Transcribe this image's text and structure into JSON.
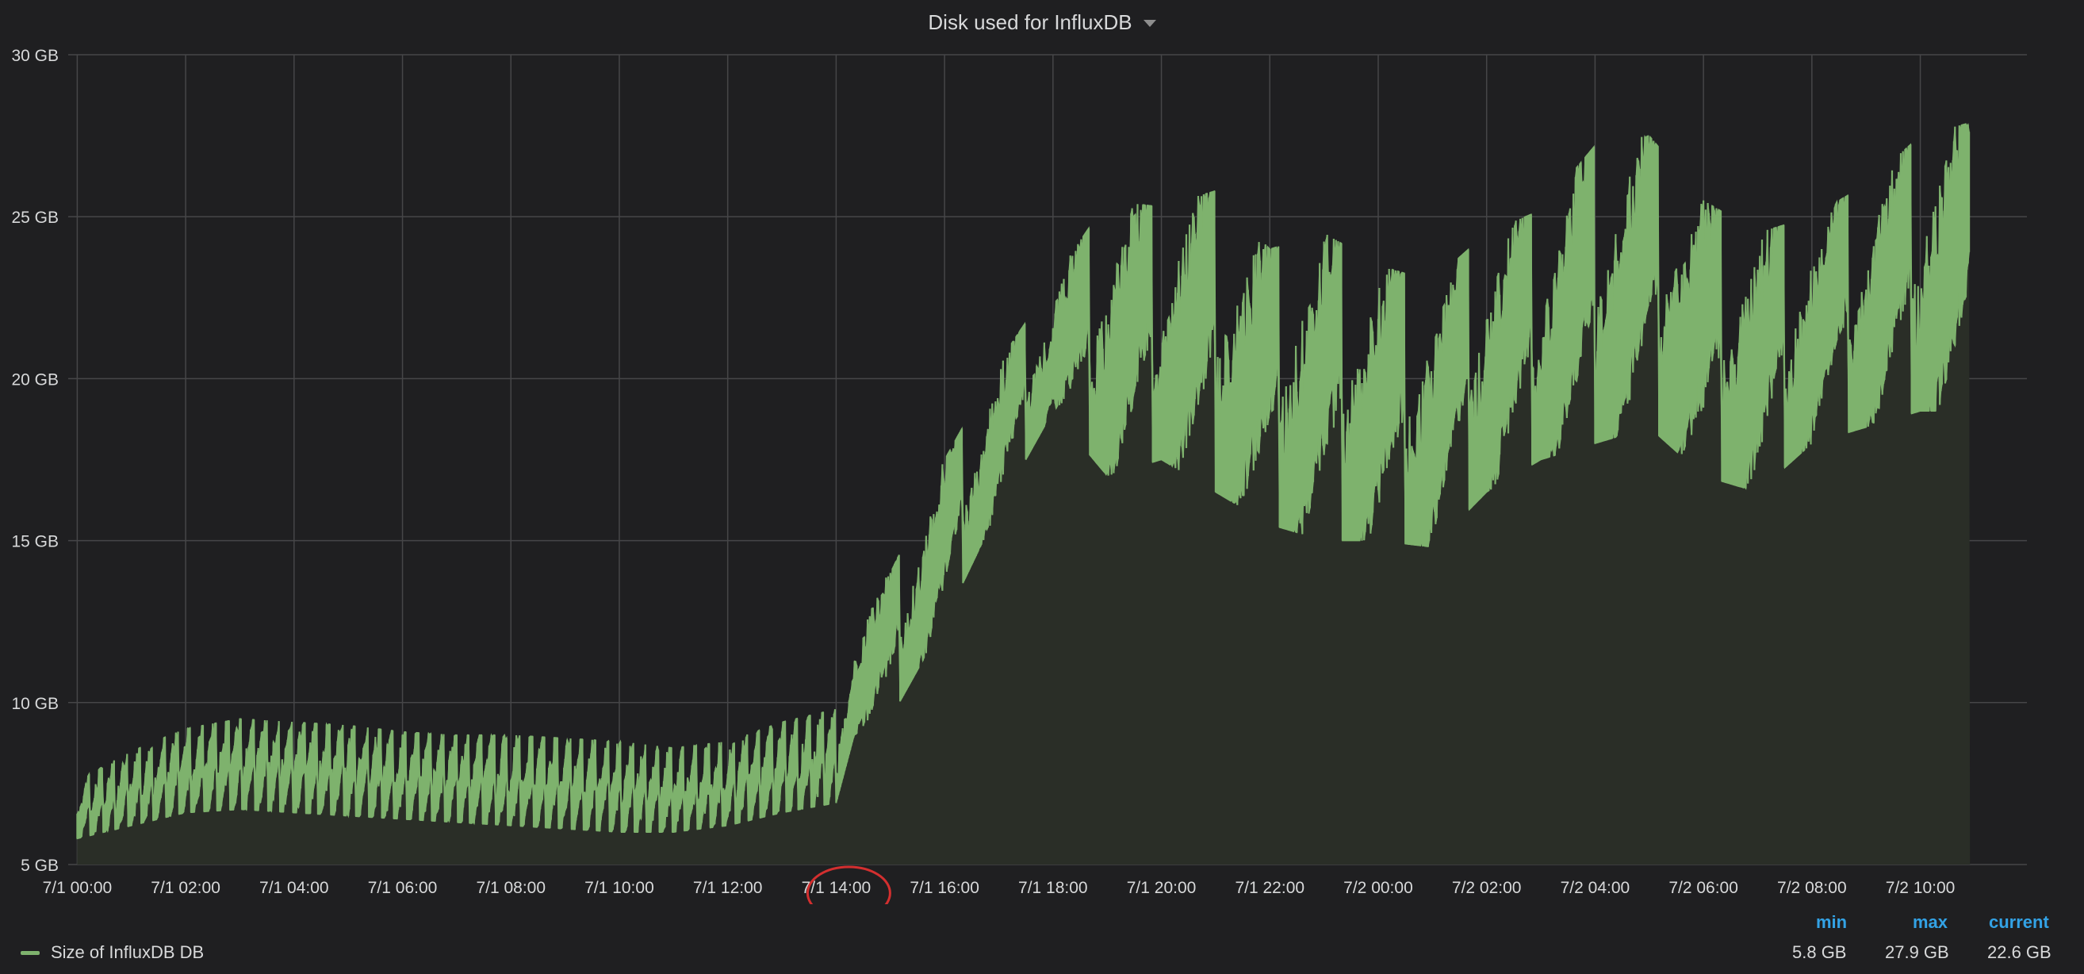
{
  "panel": {
    "title": "Disk used for InfluxDB"
  },
  "colors": {
    "background": "#1f1f21",
    "grid": "#464648",
    "series": "#7eb26d",
    "fill": "#2a2e27",
    "legend_header": "#33a2e5",
    "annotation": "#d32f2f"
  },
  "legend": {
    "headers": {
      "min": "min",
      "max": "max",
      "current": "current"
    },
    "series_label": "Size of InfluxDB DB",
    "min": "5.8 GB",
    "max": "27.9 GB",
    "current": "22.6 GB"
  },
  "chart_data": {
    "type": "area",
    "title": "Disk used for InfluxDB",
    "xlabel": "",
    "ylabel": "",
    "y_unit": "GB",
    "ylim": [
      5,
      30
    ],
    "y_ticks": [
      5,
      10,
      15,
      20,
      25,
      30
    ],
    "y_tick_labels": [
      "5 GB",
      "10 GB",
      "15 GB",
      "20 GB",
      "25 GB",
      "30 GB"
    ],
    "xlim": [
      "7/1 00:00",
      "7/2 11:00"
    ],
    "x_ticks": [
      "7/1 00:00",
      "7/1 02:00",
      "7/1 04:00",
      "7/1 06:00",
      "7/1 08:00",
      "7/1 10:00",
      "7/1 12:00",
      "7/1 14:00",
      "7/1 16:00",
      "7/1 18:00",
      "7/1 20:00",
      "7/1 22:00",
      "7/2 00:00",
      "7/2 02:00",
      "7/2 04:00",
      "7/2 06:00",
      "7/2 08:00",
      "7/2 10:00"
    ],
    "grid": true,
    "legend_position": "bottom",
    "annotation": "red circle around 7/1 14:00 tick label",
    "series": [
      {
        "name": "Size of InfluxDB DB",
        "x": [
          "7/1 00:00",
          "7/1 01:00",
          "7/1 02:00",
          "7/1 03:00",
          "7/1 04:00",
          "7/1 05:00",
          "7/1 06:00",
          "7/1 07:00",
          "7/1 08:00",
          "7/1 09:00",
          "7/1 10:00",
          "7/1 11:00",
          "7/1 12:00",
          "7/1 13:00",
          "7/1 14:00",
          "7/1 14:20",
          "7/1 15:00",
          "7/1 16:00",
          "7/1 17:00",
          "7/1 18:00",
          "7/1 19:00",
          "7/1 20:00",
          "7/1 21:00",
          "7/1 22:00",
          "7/1 23:00",
          "7/2 00:00",
          "7/2 01:00",
          "7/2 02:00",
          "7/2 03:00",
          "7/2 04:00",
          "7/2 05:00",
          "7/2 06:00",
          "7/2 07:00",
          "7/2 08:00",
          "7/2 09:00",
          "7/2 10:00",
          "7/2 10:55"
        ],
        "max": [
          7.6,
          8.5,
          9.2,
          9.5,
          9.4,
          9.3,
          9.1,
          9.0,
          9.0,
          8.9,
          8.8,
          8.6,
          8.8,
          9.4,
          9.8,
          12.8,
          14.0,
          17.5,
          20.5,
          23.0,
          25.5,
          25.3,
          25.8,
          24.0,
          24.5,
          23.5,
          23.0,
          24.5,
          25.2,
          27.2,
          27.5,
          25.5,
          24.5,
          25.0,
          26.0,
          27.5,
          27.9
        ],
        "min": [
          5.8,
          6.2,
          6.6,
          6.7,
          6.6,
          6.5,
          6.4,
          6.3,
          6.2,
          6.1,
          6.0,
          6.0,
          6.2,
          6.6,
          6.9,
          9.0,
          9.5,
          12.5,
          16.0,
          19.0,
          17.0,
          17.5,
          16.5,
          15.5,
          15.0,
          15.0,
          14.8,
          16.5,
          17.5,
          18.0,
          18.5,
          17.0,
          16.5,
          18.0,
          18.5,
          19.0,
          19.0
        ]
      }
    ]
  }
}
